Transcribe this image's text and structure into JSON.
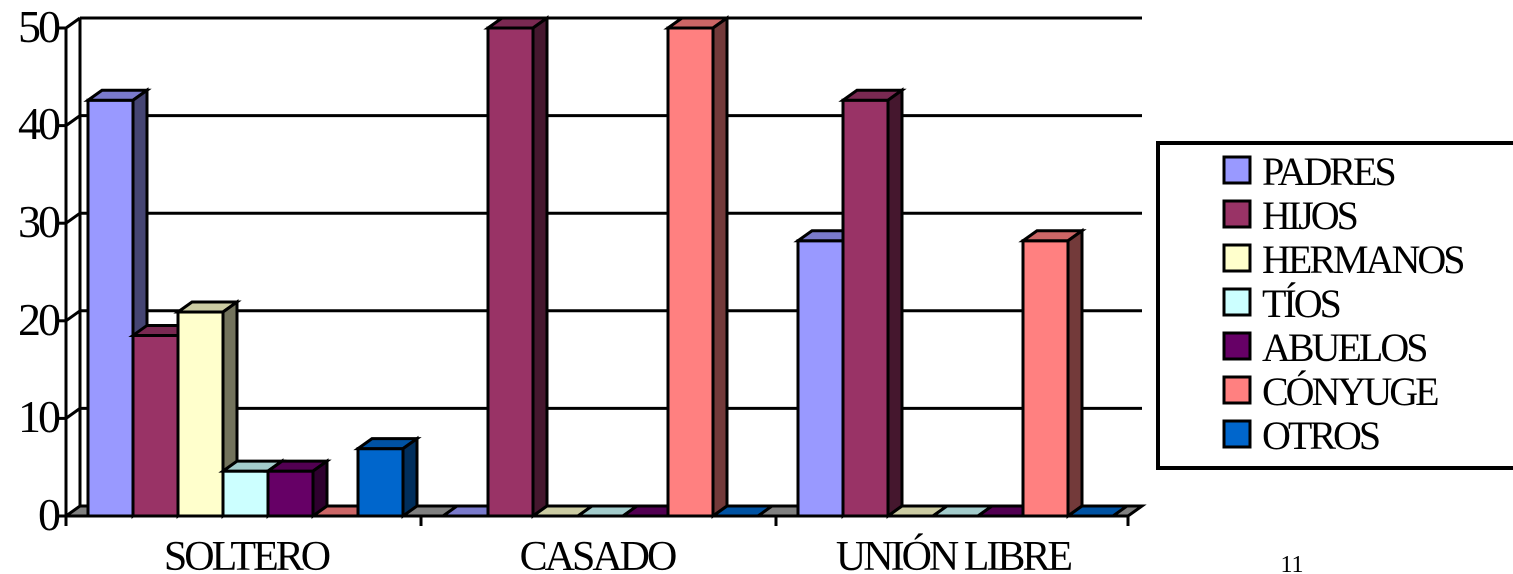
{
  "page_number": "11",
  "chart_data": {
    "type": "bar",
    "categories": [
      "SOLTERO",
      "CASADO",
      "UNIÓN LIBRE"
    ],
    "series": [
      {
        "name": "PADRES",
        "color": "#9999ff",
        "values": [
          42.6,
          0,
          28.2
        ]
      },
      {
        "name": "HIJOS",
        "color": "#993366",
        "values": [
          18.5,
          50,
          42.6
        ]
      },
      {
        "name": "HERMANOS",
        "color": "#ffffcc",
        "values": [
          20.9,
          0,
          0
        ]
      },
      {
        "name": "TÍOS",
        "color": "#ccffff",
        "values": [
          4.6,
          0,
          0
        ]
      },
      {
        "name": "ABUELOS",
        "color": "#660066",
        "values": [
          4.6,
          0,
          0
        ]
      },
      {
        "name": "CÓNYUGE",
        "color": "#ff8080",
        "values": [
          0,
          50,
          28.2
        ]
      },
      {
        "name": "OTROS",
        "color": "#0066cc",
        "values": [
          6.9,
          0,
          0
        ]
      }
    ],
    "yticks": [
      "0",
      "10",
      "20",
      "30",
      "40",
      "50"
    ],
    "ylim": [
      0,
      50
    ],
    "grid": true,
    "legend": "right",
    "style": "3d-column"
  }
}
